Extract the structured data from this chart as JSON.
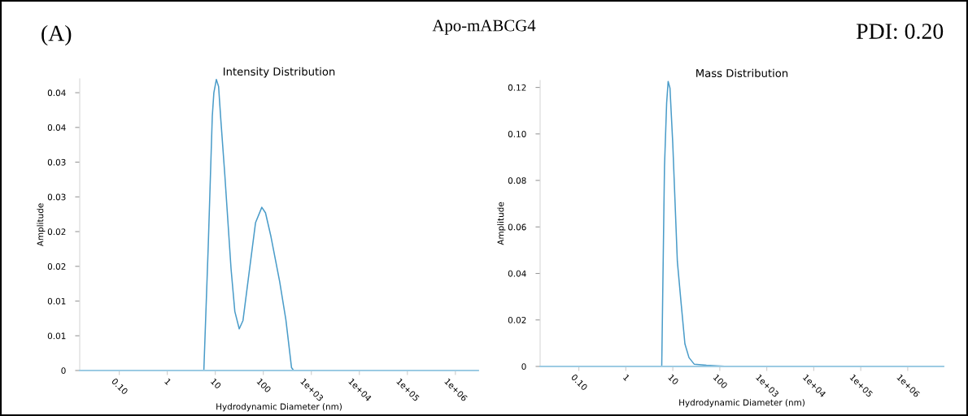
{
  "chart_data": [
    {
      "type": "line",
      "title": "Intensity Distribution",
      "xlabel": "Hydrodynamic Diameter (nm)",
      "ylabel": "Amplitude",
      "annotations": [
        "(A)",
        "Apo-mABCG4",
        "PDI: 0.20"
      ],
      "log": "x",
      "grid": false,
      "legend": false,
      "marker": "none",
      "line_style": "solid",
      "xlim": [
        0.015,
        3000000
      ],
      "ylim": [
        0,
        0.042
      ],
      "xticks": [
        {
          "value": 0.1,
          "label": "0.10"
        },
        1,
        10,
        100,
        {
          "value": 1000,
          "label": "1e+03"
        },
        {
          "value": 10000,
          "label": "1e+04"
        },
        {
          "value": 100000,
          "label": "1e+05"
        },
        {
          "value": 1000000,
          "label": "1e+06"
        }
      ],
      "yticks": [
        0,
        {
          "value": 0.005,
          "label": "0.01"
        },
        {
          "value": 0.01,
          "label": "0.01"
        },
        {
          "value": 0.015,
          "label": "0.02"
        },
        {
          "value": 0.02,
          "label": "0.02"
        },
        {
          "value": 0.025,
          "label": "0.03"
        },
        {
          "value": 0.03,
          "label": "0.03"
        },
        {
          "value": 0.035,
          "label": "0.04"
        },
        {
          "value": 0.04,
          "label": "0.04"
        }
      ],
      "series": [
        {
          "color": "#4a9cc9",
          "x": [
            0.015,
            5.77,
            7.13,
            8.65,
            9.33,
            10.5,
            11.7,
            13.0,
            15.8,
            21.3,
            25.5,
            31.5,
            37.7,
            48.7,
            68.9,
            93,
            111,
            144,
            219,
            295,
            387,
            430,
            3000000
          ],
          "values": [
            0,
            0,
            0.018,
            0.0366,
            0.04,
            0.0419,
            0.0409,
            0.0362,
            0.0281,
            0.0146,
            0.0085,
            0.006,
            0.0072,
            0.0132,
            0.0213,
            0.0235,
            0.0227,
            0.0193,
            0.0128,
            0.0073,
            0.0004,
            0,
            0
          ]
        }
      ]
    },
    {
      "type": "line",
      "title": "Mass Distribution",
      "xlabel": "Hydrodynamic Diameter (nm)",
      "ylabel": "Amplitude",
      "log": "x",
      "grid": false,
      "legend": false,
      "marker": "none",
      "line_style": "solid",
      "xlim": [
        0.015,
        5800000
      ],
      "ylim": [
        0,
        0.123
      ],
      "xticks": [
        {
          "value": 0.1,
          "label": "0.10"
        },
        1,
        10,
        100,
        {
          "value": 1000,
          "label": "1e+03"
        },
        {
          "value": 10000,
          "label": "1e+04"
        },
        {
          "value": 100000,
          "label": "1e+05"
        },
        {
          "value": 1000000,
          "label": "1e+06"
        }
      ],
      "yticks": [
        0,
        0.02,
        0.04,
        0.06,
        0.08,
        {
          "value": 0.1,
          "label": "0.10"
        },
        0.12
      ],
      "series": [
        {
          "color": "#4a9cc9",
          "x": [
            0.015,
            5.81,
            6.65,
            7.39,
            7.96,
            8.71,
            9.97,
            12.5,
            14.9,
            18.1,
            22.1,
            28.5,
            51.9,
            127,
            5800000
          ],
          "values": [
            0,
            0,
            0.0857,
            0.1132,
            0.1226,
            0.1197,
            0.0961,
            0.0451,
            0.028,
            0.0097,
            0.0038,
            0.001,
            0.0005,
            0.0001,
            0
          ]
        }
      ]
    }
  ]
}
